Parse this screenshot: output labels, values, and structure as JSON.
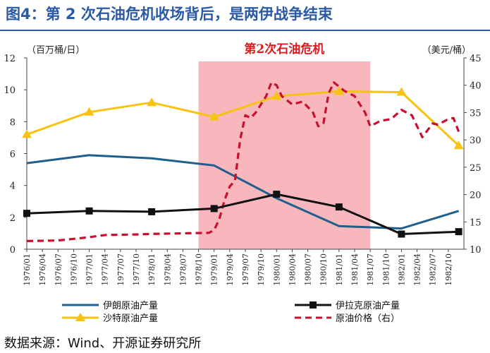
{
  "figure_title": "图4：第 2 次石油危机收场背后，是两伊战争结束",
  "source_text": "数据来源：Wind、开源证券研究所",
  "chart_data": {
    "type": "line",
    "highlight_label": "第2次石油危机",
    "highlight_range": [
      "1978/10",
      "1981/07"
    ],
    "left_axis_unit": "（百万桶/日）",
    "right_axis_unit": "（美元/桶）",
    "left_ylim": [
      0,
      12
    ],
    "right_ylim": [
      10,
      45
    ],
    "left_ticks": [
      "0",
      "2",
      "4",
      "6",
      "8",
      "10",
      "12"
    ],
    "right_ticks": [
      "10",
      "15",
      "20",
      "25",
      "30",
      "35",
      "40",
      "45"
    ],
    "x_ticks": [
      "1976/01",
      "1976/04",
      "1976/07",
      "1976/10",
      "1977/01",
      "1977/04",
      "1977/07",
      "1977/10",
      "1978/01",
      "1978/04",
      "1978/07",
      "1978/10",
      "1979/01",
      "1979/04",
      "1979/07",
      "1979/10",
      "1980/01",
      "1980/04",
      "1980/07",
      "1980/10",
      "1981/01",
      "1981/04",
      "1981/07",
      "1981/10",
      "1982/01",
      "1982/04",
      "1982/07",
      "1982/10"
    ],
    "grid": false,
    "legend_position": "bottom",
    "colors": {
      "iran": "#1f5f8e",
      "iraq": "#111111",
      "saudi": "#f7c310",
      "oil": "#c8102e",
      "highlight": "#f7b7bc",
      "title": "#2a5aa6",
      "highlight_label": "#e0191e"
    },
    "series": [
      {
        "name": "伊朗原油产量",
        "axis": "left",
        "style": "solid",
        "points": [
          [
            "1976/01",
            5.4
          ],
          [
            "1977/01",
            5.9
          ],
          [
            "1978/01",
            5.7
          ],
          [
            "1979/01",
            5.25
          ],
          [
            "1980/01",
            3.2
          ],
          [
            "1981/01",
            1.45
          ],
          [
            "1982/01",
            1.3
          ],
          [
            "1982/12",
            2.4
          ]
        ]
      },
      {
        "name": "伊拉克原油产量",
        "axis": "left",
        "style": "solid",
        "marker": "square",
        "points": [
          [
            "1976/01",
            2.25
          ],
          [
            "1977/01",
            2.4
          ],
          [
            "1978/01",
            2.35
          ],
          [
            "1979/01",
            2.55
          ],
          [
            "1980/01",
            3.45
          ],
          [
            "1981/01",
            2.65
          ],
          [
            "1982/01",
            0.95
          ],
          [
            "1982/12",
            1.1
          ]
        ]
      },
      {
        "name": "沙特原油产量",
        "axis": "left",
        "style": "solid",
        "marker": "triangle",
        "points": [
          [
            "1976/01",
            7.2
          ],
          [
            "1977/01",
            8.6
          ],
          [
            "1978/01",
            9.2
          ],
          [
            "1979/01",
            8.3
          ],
          [
            "1980/01",
            9.6
          ],
          [
            "1981/01",
            9.9
          ],
          [
            "1982/01",
            9.85
          ],
          [
            "1982/12",
            6.5
          ]
        ]
      },
      {
        "name": "原油价格（右）",
        "axis": "right",
        "style": "dashed",
        "points": [
          [
            "1976/01",
            11.5
          ],
          [
            "1976/07",
            11.6
          ],
          [
            "1977/01",
            12.2
          ],
          [
            "1977/04",
            12.6
          ],
          [
            "1977/10",
            12.7
          ],
          [
            "1978/01",
            12.8
          ],
          [
            "1978/07",
            12.9
          ],
          [
            "1978/12",
            13.0
          ],
          [
            "1979/01",
            13.5
          ],
          [
            "1979/02",
            15.5
          ],
          [
            "1979/03",
            19.0
          ],
          [
            "1979/04",
            21.5
          ],
          [
            "1979/05",
            22.5
          ],
          [
            "1979/06",
            30.0
          ],
          [
            "1979/07",
            34.5
          ],
          [
            "1979/08",
            34.0
          ],
          [
            "1979/09",
            35.0
          ],
          [
            "1979/11",
            38.0
          ],
          [
            "1979/12",
            40.5
          ],
          [
            "1980/01",
            40.0
          ],
          [
            "1980/02",
            38.0
          ],
          [
            "1980/04",
            36.5
          ],
          [
            "1980/06",
            37.0
          ],
          [
            "1980/08",
            35.0
          ],
          [
            "1980/09",
            32.5
          ],
          [
            "1980/10",
            33.0
          ],
          [
            "1980/11",
            38.5
          ],
          [
            "1980/12",
            40.5
          ],
          [
            "1981/02",
            39.0
          ],
          [
            "1981/04",
            38.0
          ],
          [
            "1981/06",
            35.0
          ],
          [
            "1981/07",
            32.5
          ],
          [
            "1981/09",
            33.5
          ],
          [
            "1981/11",
            33.8
          ],
          [
            "1982/01",
            35.5
          ],
          [
            "1982/03",
            34.5
          ],
          [
            "1982/05",
            30.5
          ],
          [
            "1982/07",
            33.0
          ],
          [
            "1982/08",
            32.8
          ],
          [
            "1982/10",
            33.8
          ],
          [
            "1982/11",
            34.0
          ],
          [
            "1982/12",
            31.5
          ]
        ]
      }
    ]
  }
}
